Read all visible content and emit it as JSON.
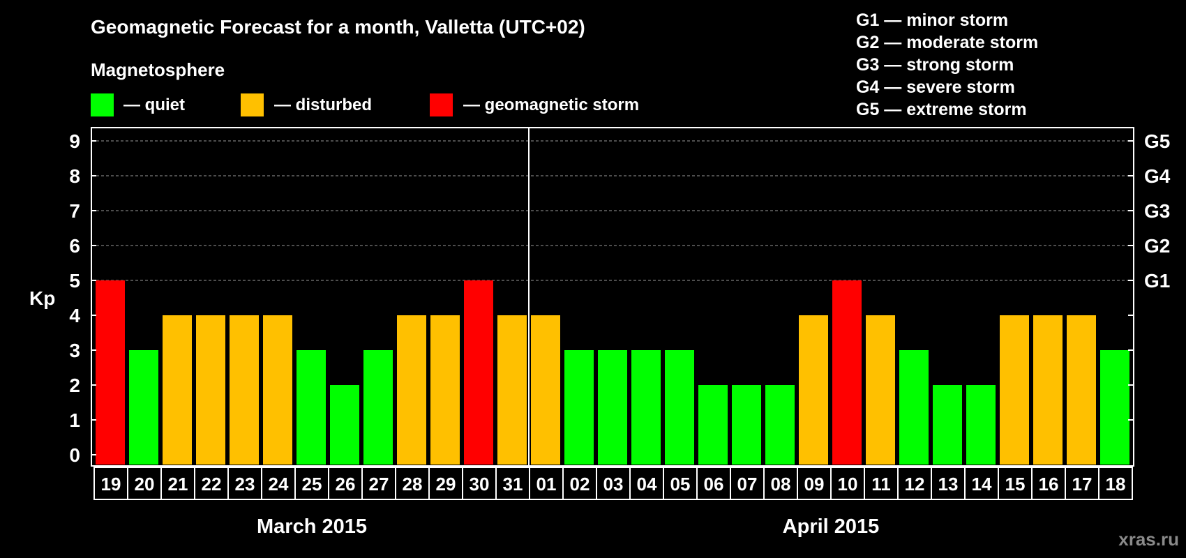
{
  "chart_data": {
    "type": "bar",
    "title": "Geomagnetic Forecast for a month, Valletta (UTC+02)",
    "legend_heading": "Magnetosphere",
    "legend": [
      {
        "label": "— quiet",
        "color": "#00ff00"
      },
      {
        "label": "— disturbed",
        "color": "#ffc000"
      },
      {
        "label": "— geomagnetic storm",
        "color": "#ff0000"
      }
    ],
    "storm_scale": [
      "G1 — minor storm",
      "G2 — moderate storm",
      "G3 — strong storm",
      "G4 — severe storm",
      "G5 — extreme storm"
    ],
    "ylabel": "Kp",
    "ylim": [
      0,
      9
    ],
    "yticks": [
      "0",
      "1",
      "2",
      "3",
      "4",
      "5",
      "6",
      "7",
      "8",
      "9"
    ],
    "right_ticks": [
      {
        "value": 5,
        "label": "G1"
      },
      {
        "value": 6,
        "label": "G2"
      },
      {
        "value": 7,
        "label": "G3"
      },
      {
        "value": 8,
        "label": "G4"
      },
      {
        "value": 9,
        "label": "G5"
      }
    ],
    "grid": true,
    "categories": [
      "19",
      "20",
      "21",
      "22",
      "23",
      "24",
      "25",
      "26",
      "27",
      "28",
      "29",
      "30",
      "31",
      "01",
      "02",
      "03",
      "04",
      "05",
      "06",
      "07",
      "08",
      "09",
      "10",
      "11",
      "12",
      "13",
      "14",
      "15",
      "16",
      "17",
      "18"
    ],
    "values": [
      5,
      3,
      4,
      4,
      4,
      4,
      3,
      2,
      3,
      4,
      4,
      5,
      4,
      4,
      3,
      3,
      3,
      3,
      2,
      2,
      2,
      4,
      5,
      4,
      3,
      2,
      2,
      4,
      4,
      4,
      3
    ],
    "colors": {
      "quiet": "#00ff00",
      "disturbed": "#ffc000",
      "storm": "#ff0000"
    },
    "months": [
      {
        "label": "March 2015",
        "start": 0,
        "count": 13
      },
      {
        "label": "April 2015",
        "start": 13,
        "count": 18
      }
    ]
  },
  "watermark": "xras.ru"
}
